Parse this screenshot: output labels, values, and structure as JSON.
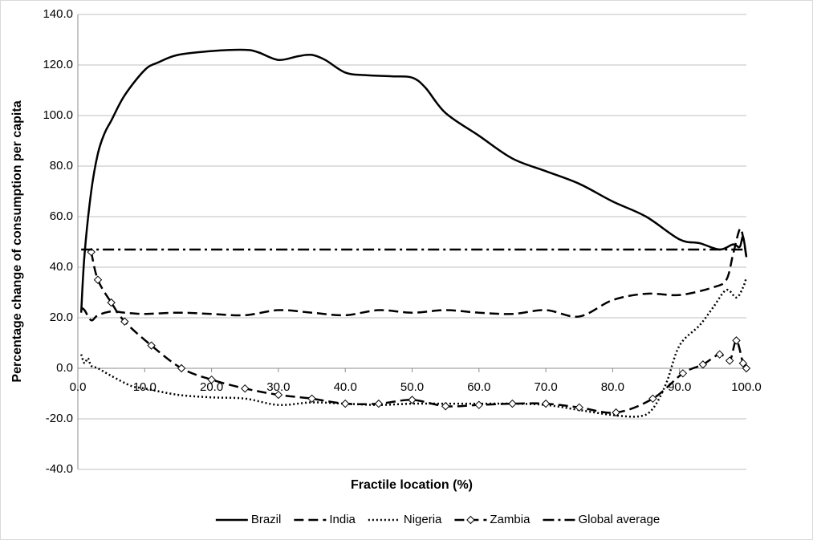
{
  "chart_data": {
    "type": "line",
    "xlabel": "Fractile location (%)",
    "ylabel": "Percentage change of consumption per capita",
    "xlim": [
      0,
      100
    ],
    "ylim": [
      -40,
      140
    ],
    "xticks": [
      {
        "value": 0,
        "label": "0.0"
      },
      {
        "value": 10,
        "label": "10.0"
      },
      {
        "value": 20,
        "label": "20.0"
      },
      {
        "value": 30,
        "label": "30.0"
      },
      {
        "value": 40,
        "label": "40.0"
      },
      {
        "value": 50,
        "label": "50.0"
      },
      {
        "value": 60,
        "label": "60.0"
      },
      {
        "value": 70,
        "label": "70.0"
      },
      {
        "value": 80,
        "label": "80.0"
      },
      {
        "value": 90,
        "label": "90.0"
      },
      {
        "value": 100,
        "label": "100.0"
      }
    ],
    "yticks": [
      {
        "value": -40,
        "label": "-40.0"
      },
      {
        "value": -20,
        "label": "-20.0"
      },
      {
        "value": 0,
        "label": "0.0"
      },
      {
        "value": 20,
        "label": "20.0"
      },
      {
        "value": 40,
        "label": "40.0"
      },
      {
        "value": 60,
        "label": "60.0"
      },
      {
        "value": 80,
        "label": "80.0"
      },
      {
        "value": 100,
        "label": "100.0"
      },
      {
        "value": 120,
        "label": "120.0"
      },
      {
        "value": 140,
        "label": "140.0"
      }
    ],
    "grid": true,
    "legend": "bottom",
    "series": [
      {
        "name": "Brazil",
        "color": "#000000",
        "style": "solid",
        "x": [
          0.5,
          1,
          2,
          3,
          4,
          5,
          7,
          10,
          12,
          15,
          20,
          25,
          27,
          30,
          33,
          35,
          37,
          40,
          43,
          47,
          50,
          52,
          55,
          60,
          65,
          70,
          75,
          80,
          85,
          90,
          93,
          96,
          98,
          99,
          99.5,
          100
        ],
        "values": [
          22,
          45,
          70,
          85,
          93,
          98,
          108,
          118,
          121,
          124,
          125.5,
          126,
          125,
          122,
          123.5,
          124,
          122,
          117,
          116,
          115.5,
          115,
          111,
          101,
          92,
          83,
          78,
          73,
          66,
          60,
          51,
          49.5,
          47,
          49,
          48,
          52,
          44
        ]
      },
      {
        "name": "India",
        "color": "#000000",
        "style": "dashed",
        "x": [
          0.5,
          1,
          2,
          3,
          5,
          7,
          10,
          15,
          20,
          25,
          30,
          35,
          40,
          45,
          50,
          55,
          60,
          65,
          70,
          75,
          80,
          85,
          90,
          95,
          97,
          98,
          99,
          99.5,
          100
        ],
        "values": [
          24,
          23,
          19,
          21,
          22.5,
          22,
          21.5,
          22,
          21.5,
          21,
          23,
          22,
          21,
          23,
          22,
          23,
          22,
          21.5,
          23,
          20.5,
          27,
          29.5,
          29,
          32,
          35,
          45,
          55,
          52,
          44
        ]
      },
      {
        "name": "Nigeria",
        "color": "#000000",
        "style": "dotted",
        "x": [
          0.5,
          1,
          1.5,
          2,
          3,
          5,
          8,
          10,
          15,
          20,
          25,
          30,
          35,
          40,
          45,
          50,
          55,
          60,
          65,
          70,
          75,
          80,
          84,
          86,
          88,
          90,
          93,
          95,
          97,
          98.5,
          99.5,
          100
        ],
        "values": [
          5.5,
          2,
          4,
          1,
          0,
          -3,
          -7,
          -8,
          -10.5,
          -11.5,
          -12,
          -14.5,
          -13.5,
          -14,
          -14.5,
          -14,
          -14,
          -14,
          -14,
          -14.5,
          -16.5,
          -18.5,
          -19,
          -16,
          -6,
          9,
          17,
          24,
          31,
          28,
          32,
          36
        ]
      },
      {
        "name": "Zambia",
        "color": "#000000",
        "style": "dashed",
        "marker": "diamond",
        "x": [
          2,
          3,
          5,
          7,
          11,
          15.5,
          20,
          25,
          30,
          35,
          40,
          45,
          50,
          55,
          60,
          65,
          70,
          75,
          80.5,
          86,
          90.5,
          93.5,
          96,
          97.5,
          98.5,
          99.5,
          100
        ],
        "values": [
          46,
          35,
          26,
          18.5,
          9,
          0,
          -4.5,
          -8,
          -10.5,
          -12,
          -14,
          -14,
          -12.5,
          -15,
          -14.5,
          -14,
          -14,
          -15.5,
          -17.5,
          -12,
          -2,
          1.5,
          5.5,
          3,
          11,
          2,
          0
        ]
      },
      {
        "name": "Global average",
        "color": "#000000",
        "style": "dashdot",
        "x": [
          0.5,
          100
        ],
        "values": [
          47,
          47
        ]
      }
    ]
  }
}
